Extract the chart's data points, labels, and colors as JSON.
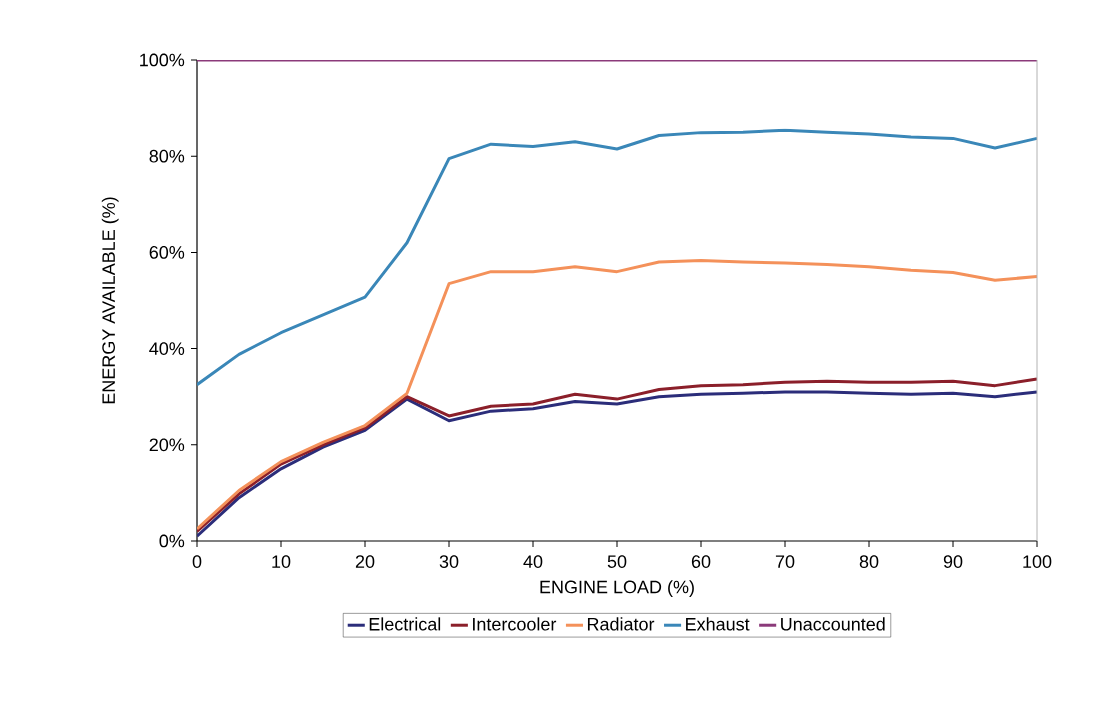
{
  "chart_data": {
    "type": "line",
    "xlabel": "ENGINE LOAD (%)",
    "ylabel": "ENERGY AVAILABLE (%)",
    "x": [
      0,
      5,
      10,
      15,
      20,
      25,
      30,
      35,
      40,
      45,
      50,
      55,
      60,
      65,
      70,
      75,
      80,
      85,
      90,
      95,
      100
    ],
    "xlim": [
      0,
      100
    ],
    "xticks": [
      0,
      10,
      20,
      30,
      40,
      50,
      60,
      70,
      80,
      90,
      100
    ],
    "ylim": [
      0,
      100
    ],
    "yticks": [
      {
        "value": 0,
        "label": "0%"
      },
      {
        "value": 20,
        "label": "20%"
      },
      {
        "value": 40,
        "label": "40%"
      },
      {
        "value": 60,
        "label": "60%"
      },
      {
        "value": 80,
        "label": "80%"
      },
      {
        "value": 100,
        "label": "100%"
      }
    ],
    "grid": false,
    "legend": "bottom",
    "marker": "none",
    "line_style": "solid",
    "series": [
      {
        "name": "Electrical",
        "color": "#2b2d7a",
        "values": [
          1,
          9,
          15,
          19.5,
          23,
          29.5,
          25,
          27,
          27.5,
          29,
          28.5,
          30,
          30.5,
          30.7,
          31,
          31,
          30.7,
          30.5,
          30.7,
          30,
          31
        ]
      },
      {
        "name": "Intercooler",
        "color": "#8b1f2a",
        "values": [
          2,
          9.8,
          16,
          20,
          23.5,
          30,
          26,
          28,
          28.5,
          30.5,
          29.5,
          31.5,
          32.3,
          32.5,
          33,
          33.2,
          33,
          33,
          33.2,
          32.3,
          33.7
        ]
      },
      {
        "name": "Radiator",
        "color": "#f4915a",
        "values": [
          2.5,
          10.5,
          16.5,
          20.5,
          24,
          30.7,
          53.5,
          56,
          56,
          57,
          56,
          58,
          58.3,
          58,
          57.8,
          57.5,
          57,
          56.3,
          55.8,
          54.2,
          55
        ]
      },
      {
        "name": "Exhaust",
        "color": "#3a87b8",
        "values": [
          32.5,
          38.8,
          43.3,
          47,
          50.7,
          62,
          79.5,
          82.5,
          82,
          83,
          81.5,
          84.3,
          84.9,
          85,
          85.4,
          85,
          84.6,
          84,
          83.7,
          81.7,
          83.7
        ]
      },
      {
        "name": "Unaccounted",
        "color": "#8b3a7a",
        "values": [
          100,
          100,
          100,
          100,
          100,
          100,
          100,
          100,
          100,
          100,
          100,
          100,
          100,
          100,
          100,
          100,
          100,
          100,
          100,
          100,
          100
        ]
      }
    ]
  }
}
